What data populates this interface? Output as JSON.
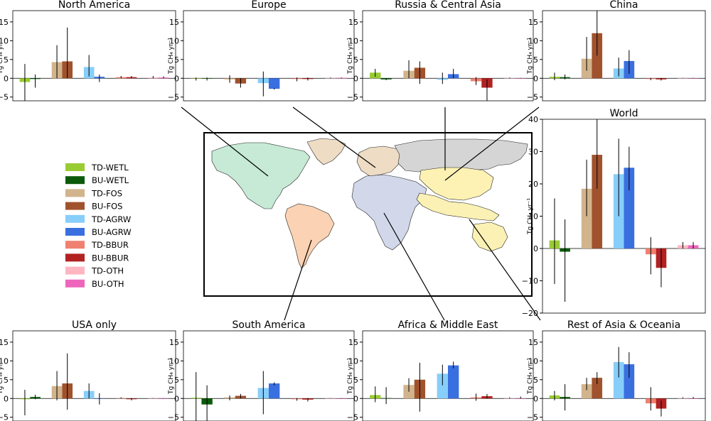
{
  "figure": {
    "ylabel": "Tg CH₄ yr⁻¹",
    "legend": [
      {
        "label": "TD-WETL",
        "color": "#99cc33"
      },
      {
        "label": "BU-WETL",
        "color": "#0a5a0a"
      },
      {
        "label": "TD-FOS",
        "color": "#d2b48c"
      },
      {
        "label": "BU-FOS",
        "color": "#a0522d"
      },
      {
        "label": "TD-AGRW",
        "color": "#87cefa"
      },
      {
        "label": "BU-AGRW",
        "color": "#3a6fe0"
      },
      {
        "label": "TD-BBUR",
        "color": "#f08070"
      },
      {
        "label": "BU-BBUR",
        "color": "#b22222"
      },
      {
        "label": "TD-OTH",
        "color": "#ffb6c1"
      },
      {
        "label": "BU-OTH",
        "color": "#ee66bb"
      }
    ],
    "map_regions": [
      {
        "name": "North America",
        "color": "#c6ead5"
      },
      {
        "name": "Europe",
        "color": "#eedcc4"
      },
      {
        "name": "Russia & Central Asia",
        "color": "#d5d5d5"
      },
      {
        "name": "China",
        "color": "#fdf2b4"
      },
      {
        "name": "South America",
        "color": "#fbd2b3"
      },
      {
        "name": "Africa & Middle East",
        "color": "#d2d8ea"
      },
      {
        "name": "Rest of Asia & Oceania",
        "color": "#fbf1b4"
      }
    ]
  },
  "chart_data": [
    {
      "id": "na",
      "type": "bar",
      "title": "North America",
      "ylabel": "Tg CH₄ yr⁻¹",
      "ylim": [
        -6,
        18
      ],
      "yticks": [
        -5,
        0,
        5,
        10,
        15
      ],
      "categories": [
        "TD-WETL",
        "BU-WETL",
        "TD-FOS",
        "BU-FOS",
        "TD-AGRW",
        "BU-AGRW",
        "TD-BBUR",
        "BU-BBUR",
        "TD-OTH",
        "BU-OTH"
      ],
      "values": [
        -1.0,
        -0.2,
        4.3,
        4.5,
        3.0,
        0.4,
        0.3,
        0.3,
        0.2,
        0.2
      ],
      "errors": [
        [
          -6.0,
          3.8
        ],
        [
          -2.5,
          1.0
        ],
        [
          0,
          8.8
        ],
        [
          0,
          13.5
        ],
        [
          0.5,
          6.2
        ],
        [
          -1.0,
          1.0
        ],
        [
          0,
          0.6
        ],
        [
          0,
          0.6
        ],
        [
          0,
          0.6
        ],
        [
          0,
          0.5
        ]
      ]
    },
    {
      "id": "eu",
      "type": "bar",
      "title": "Europe",
      "ylabel": "Tg CH₄ yr⁻¹",
      "ylim": [
        -6,
        18
      ],
      "yticks": [
        -5,
        0,
        5,
        10,
        15
      ],
      "categories": [
        "TD-WETL",
        "BU-WETL",
        "TD-FOS",
        "BU-FOS",
        "TD-AGRW",
        "BU-AGRW",
        "TD-BBUR",
        "BU-BBUR",
        "TD-OTH",
        "BU-OTH"
      ],
      "values": [
        -0.1,
        -0.1,
        -0.3,
        -1.4,
        -1.3,
        -2.8,
        -0.2,
        -0.2,
        0.1,
        0.1
      ],
      "errors": [
        [
          -0.6,
          0.2
        ],
        [
          -0.6,
          0.2
        ],
        [
          -1.2,
          0.8
        ],
        [
          -2.5,
          0
        ],
        [
          -4.8,
          1.8
        ],
        [
          -3.0,
          -2.6
        ],
        [
          -0.8,
          0.2
        ],
        [
          -0.6,
          0.2
        ],
        [
          0,
          0.2
        ],
        [
          0,
          0.2
        ]
      ]
    },
    {
      "id": "ru",
      "type": "bar",
      "title": "Russia & Central Asia",
      "ylabel": "Tg CH₄ yr⁻¹",
      "ylim": [
        -6,
        18
      ],
      "yticks": [
        -5,
        0,
        5,
        10,
        15
      ],
      "categories": [
        "TD-WETL",
        "BU-WETL",
        "TD-FOS",
        "BU-FOS",
        "TD-AGRW",
        "BU-AGRW",
        "TD-BBUR",
        "BU-BBUR",
        "TD-OTH",
        "BU-OTH"
      ],
      "values": [
        1.5,
        -0.3,
        2.0,
        2.8,
        -0.4,
        1.1,
        -0.8,
        -2.5,
        0.1,
        0.0
      ],
      "errors": [
        [
          0.4,
          2.5
        ],
        [
          -0.5,
          0
        ],
        [
          0,
          4.8
        ],
        [
          -1.5,
          4.5
        ],
        [
          -1.5,
          1.5
        ],
        [
          0,
          2.5
        ],
        [
          -1.8,
          0.3
        ],
        [
          -6.0,
          -0.3
        ],
        [
          0,
          0.2
        ],
        [
          0,
          0.1
        ]
      ]
    },
    {
      "id": "cn",
      "type": "bar",
      "title": "China",
      "ylabel": "Tg CH₄ yr⁻¹",
      "ylim": [
        -6,
        18
      ],
      "yticks": [
        -5,
        0,
        5,
        10,
        15
      ],
      "categories": [
        "TD-WETL",
        "BU-WETL",
        "TD-FOS",
        "BU-FOS",
        "TD-AGRW",
        "BU-AGRW",
        "TD-BBUR",
        "BU-BBUR",
        "TD-OTH",
        "BU-OTH"
      ],
      "values": [
        0.4,
        0.3,
        5.2,
        12.0,
        2.6,
        4.6,
        -0.2,
        -0.3,
        0.0,
        0.0
      ],
      "errors": [
        [
          -0.5,
          1.5
        ],
        [
          -0.3,
          1.0
        ],
        [
          2.0,
          11.0
        ],
        [
          6.0,
          18.0
        ],
        [
          0.5,
          5.5
        ],
        [
          1.2,
          7.5
        ],
        [
          -0.5,
          0.1
        ],
        [
          -0.6,
          0.1
        ],
        [
          0,
          0.1
        ],
        [
          0,
          0.1
        ]
      ]
    },
    {
      "id": "world",
      "type": "bar",
      "title": "World",
      "ylabel": "Tg CH₄ yr⁻¹",
      "ylim": [
        -20,
        40
      ],
      "yticks": [
        -20,
        -10,
        0,
        10,
        20,
        30,
        40
      ],
      "categories": [
        "TD-WETL",
        "BU-WETL",
        "TD-FOS",
        "BU-FOS",
        "TD-AGRW",
        "BU-AGRW",
        "TD-BBUR",
        "BU-BBUR",
        "TD-OTH",
        "BU-OTH"
      ],
      "values": [
        2.5,
        -1.0,
        18.5,
        29.0,
        23.0,
        25.0,
        -1.8,
        -6.0,
        1.0,
        1.0
      ],
      "errors": [
        [
          -11.0,
          15.5
        ],
        [
          -16.5,
          9.0
        ],
        [
          10.0,
          27.5
        ],
        [
          18.5,
          40.0
        ],
        [
          10.0,
          34.0
        ],
        [
          18.0,
          31.5
        ],
        [
          -8.0,
          3.5
        ],
        [
          -12.0,
          0
        ],
        [
          0,
          2.0
        ],
        [
          0,
          2.0
        ]
      ]
    },
    {
      "id": "us",
      "type": "bar",
      "title": "USA only",
      "ylabel": "Tg CH₄ yr⁻¹",
      "ylim": [
        -6,
        18
      ],
      "yticks": [
        -5,
        0,
        5,
        10,
        15
      ],
      "categories": [
        "TD-WETL",
        "BU-WETL",
        "TD-FOS",
        "BU-FOS",
        "TD-AGRW",
        "BU-AGRW",
        "TD-BBUR",
        "BU-BBUR",
        "TD-OTH",
        "BU-OTH"
      ],
      "values": [
        -0.2,
        0.4,
        3.3,
        4.0,
        2.0,
        0.0,
        0.1,
        -0.2,
        0.0,
        0.0
      ],
      "errors": [
        [
          -4.5,
          2.3
        ],
        [
          -0.2,
          1.0
        ],
        [
          -0.5,
          7.3
        ],
        [
          -3.0,
          12.0
        ],
        [
          0,
          4.0
        ],
        [
          -1.6,
          1.4
        ],
        [
          0,
          0.3
        ],
        [
          -0.5,
          0.1
        ],
        [
          0,
          0.1
        ],
        [
          0,
          0.1
        ]
      ]
    },
    {
      "id": "sa",
      "type": "bar",
      "title": "South America",
      "ylabel": "Tg CH₄ yr⁻¹",
      "ylim": [
        -6,
        18
      ],
      "yticks": [
        -5,
        0,
        5,
        10,
        15
      ],
      "categories": [
        "TD-WETL",
        "BU-WETL",
        "TD-FOS",
        "BU-FOS",
        "TD-AGRW",
        "BU-AGRW",
        "TD-BBUR",
        "BU-BBUR",
        "TD-OTH",
        "BU-OTH"
      ],
      "values": [
        0.2,
        -1.6,
        0.3,
        0.7,
        2.8,
        4.0,
        -0.2,
        -0.3,
        0.0,
        0.0
      ],
      "errors": [
        [
          -6.0,
          7.0
        ],
        [
          -6.0,
          3.5
        ],
        [
          -0.5,
          0.8
        ],
        [
          0,
          1.2
        ],
        [
          -4.2,
          7.3
        ],
        [
          3.5,
          4.3
        ],
        [
          -0.6,
          0.1
        ],
        [
          -0.8,
          0.1
        ],
        [
          0,
          0.1
        ],
        [
          0,
          0.1
        ]
      ]
    },
    {
      "id": "af",
      "type": "bar",
      "title": "Africa & Middle East",
      "ylabel": "Tg CH₄ yr⁻¹",
      "ylim": [
        -6,
        18
      ],
      "yticks": [
        -5,
        0,
        5,
        10,
        15
      ],
      "categories": [
        "TD-WETL",
        "BU-WETL",
        "TD-FOS",
        "BU-FOS",
        "TD-AGRW",
        "BU-AGRW",
        "TD-BBUR",
        "BU-BBUR",
        "TD-OTH",
        "BU-OTH"
      ],
      "values": [
        0.9,
        0.1,
        3.6,
        5.0,
        6.6,
        8.8,
        0.3,
        0.6,
        0.0,
        0.0
      ],
      "errors": [
        [
          -1.0,
          3.2
        ],
        [
          -1.5,
          3.0
        ],
        [
          1.8,
          5.4
        ],
        [
          -3.5,
          9.5
        ],
        [
          3.5,
          9.0
        ],
        [
          8.0,
          9.8
        ],
        [
          -0.6,
          1.3
        ],
        [
          0,
          1.2
        ],
        [
          0,
          0.3
        ],
        [
          0,
          0.5
        ]
      ]
    },
    {
      "id": "ra",
      "type": "bar",
      "title": "Rest of Asia & Oceania",
      "ylabel": "Tg CH₄ yr⁻¹",
      "ylim": [
        -6,
        18
      ],
      "yticks": [
        -5,
        0,
        5,
        10,
        15
      ],
      "categories": [
        "TD-WETL",
        "BU-WETL",
        "TD-FOS",
        "BU-FOS",
        "TD-AGRW",
        "BU-AGRW",
        "TD-BBUR",
        "BU-BBUR",
        "TD-OTH",
        "BU-OTH"
      ],
      "values": [
        0.8,
        0.4,
        3.8,
        5.5,
        9.7,
        9.1,
        -1.3,
        -2.7,
        0.1,
        0.0
      ],
      "errors": [
        [
          -0.5,
          2.0
        ],
        [
          -3.2,
          3.8
        ],
        [
          2.2,
          5.5
        ],
        [
          3.8,
          7.0
        ],
        [
          5.6,
          13.7
        ],
        [
          5.5,
          12.3
        ],
        [
          -3.2,
          3.0
        ],
        [
          -4.8,
          -0.6
        ],
        [
          0,
          0.3
        ],
        [
          0,
          0.4
        ]
      ]
    }
  ]
}
